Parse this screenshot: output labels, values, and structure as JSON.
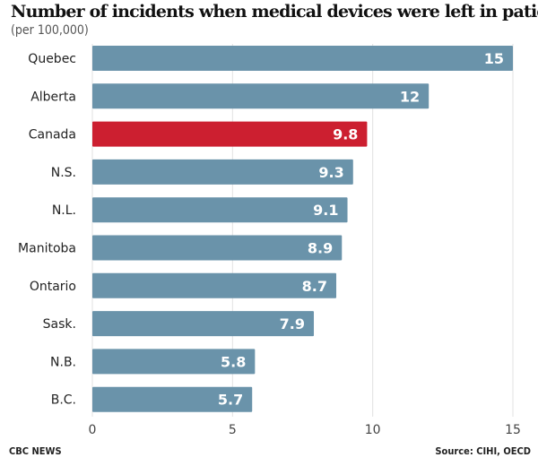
{
  "chart_data": {
    "type": "bar",
    "orientation": "horizontal",
    "title": "Number of incidents when medical devices were left in patients",
    "subtitle": "(per 100,000)",
    "categories": [
      "Quebec",
      "Alberta",
      "Canada",
      "N.S.",
      "N.L.",
      "Manitoba",
      "Ontario",
      "Sask.",
      "N.B.",
      "B.C."
    ],
    "values": [
      15,
      12,
      9.8,
      9.3,
      9.1,
      8.9,
      8.7,
      7.9,
      5.8,
      5.7
    ],
    "value_labels": [
      "15",
      "12",
      "9.8",
      "9.3",
      "9.1",
      "8.9",
      "8.7",
      "7.9",
      "5.8",
      "5.7"
    ],
    "highlight": "Canada",
    "xlim": [
      0,
      15
    ],
    "xticks": [
      "0",
      "5",
      "10",
      "15"
    ],
    "grid": true,
    "colors": {
      "bar": "#6a93aa",
      "highlight": "#cc1f30"
    }
  },
  "footer": {
    "credit": "CBC NEWS",
    "source": "Source: CIHI, OECD"
  }
}
